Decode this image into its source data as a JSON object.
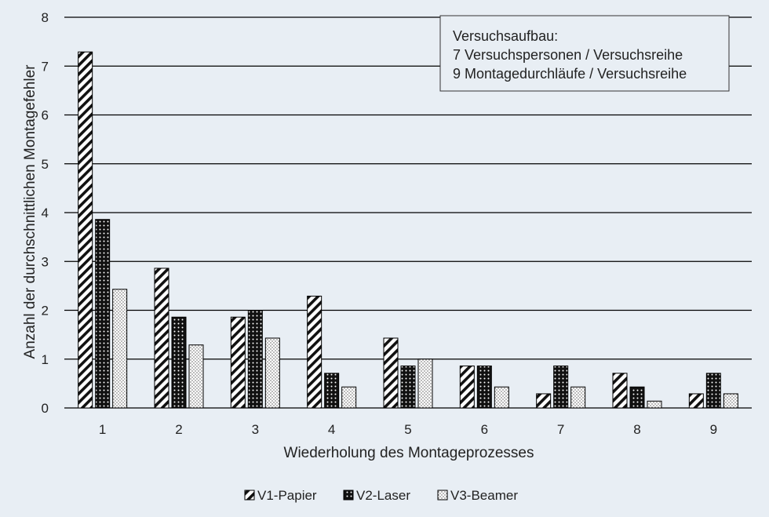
{
  "chart_data": {
    "type": "bar",
    "xlabel": "Wiederholung des Montageprozesses",
    "ylabel": "Anzahl der durchschnittlichen Montagefehler",
    "ylim": [
      0,
      8
    ],
    "yticks": [
      0,
      1,
      2,
      3,
      4,
      5,
      6,
      7,
      8
    ],
    "grid": true,
    "legend_position": "bottom",
    "categories": [
      "1",
      "2",
      "3",
      "4",
      "5",
      "6",
      "7",
      "8",
      "9"
    ],
    "series": [
      {
        "name": "V1-Papier",
        "pattern": "diagonal-hatch",
        "values": [
          7.29,
          2.86,
          1.86,
          2.29,
          1.43,
          0.86,
          0.29,
          0.71,
          0.29
        ]
      },
      {
        "name": "V2-Laser",
        "pattern": "dark-dots",
        "values": [
          3.86,
          1.86,
          2.0,
          0.71,
          0.86,
          0.86,
          0.86,
          0.43,
          0.71
        ]
      },
      {
        "name": "V3-Beamer",
        "pattern": "light-dots",
        "values": [
          2.43,
          1.29,
          1.43,
          0.43,
          1.0,
          0.43,
          0.43,
          0.14,
          0.29
        ]
      }
    ],
    "annotation": {
      "lines": [
        "Versuchsaufbau:",
        "7 Versuchspersonen / Versuchsreihe",
        "9 Montagedurchläufe / Versuchsreihe"
      ]
    }
  },
  "colors": {
    "background": "#e8eef4",
    "grid": "#000000",
    "bar_outline": "#000000",
    "note_background": "#e8eef4"
  }
}
